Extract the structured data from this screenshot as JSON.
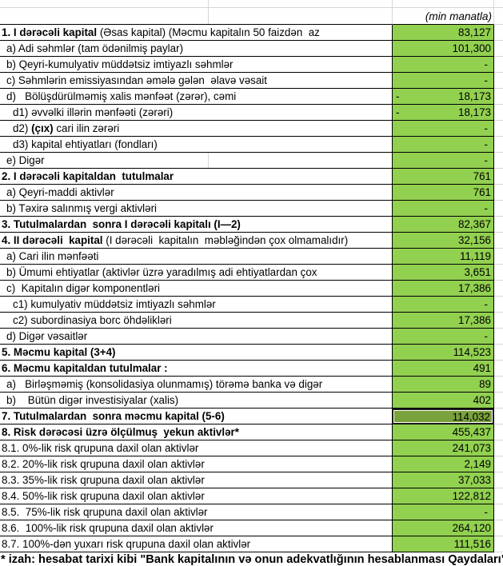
{
  "header": {
    "unit_label": "(min manatla)"
  },
  "colors": {
    "cell_green": "#92d050",
    "selected_cell_green": "#7aa23c",
    "grid_line": "#d6d6d6",
    "cell_border": "#000000"
  },
  "table": {
    "rows": [
      {
        "label_parts": [
          {
            "text": "1. I dərəcəli kapital",
            "bold": true
          },
          {
            "text": " (Əsas kapital) (Məcmu kapitalın 50 faizdən  az",
            "bold": false
          }
        ],
        "indent": 0,
        "value": "83,127"
      },
      {
        "label_parts": [
          {
            "text": "a) Adi səhmlər (tam ödənilmiş paylar)",
            "bold": false
          }
        ],
        "indent": 1,
        "value": "101,300"
      },
      {
        "label_parts": [
          {
            "text": "b) Qeyri-kumulyativ müddətsiz imtiyazlı səhmlər",
            "bold": false
          }
        ],
        "indent": 1,
        "value": "-",
        "dash": true
      },
      {
        "label_parts": [
          {
            "text": "c) Səhmlərin emissiyasından əmələ gələn  əlavə vəsait",
            "bold": false
          }
        ],
        "indent": 1,
        "value": "-",
        "dash": true
      },
      {
        "label_parts": [
          {
            "text": "d)   Bölüşdürülməmiş xalis mənfəət (zərər), cəmi",
            "bold": false
          }
        ],
        "indent": 1,
        "value": "18,173",
        "negative": true
      },
      {
        "label_parts": [
          {
            "text": "d1) əvvəlki illərin mənfəəti (zərəri)",
            "bold": false
          }
        ],
        "indent": 2,
        "value": "18,173",
        "negative": true
      },
      {
        "label_parts": [
          {
            "text": "d2) ",
            "bold": false
          },
          {
            "text": "(çıx)",
            "bold": true
          },
          {
            "text": " cari ilin zərəri",
            "bold": false
          }
        ],
        "indent": 2,
        "value": "-",
        "dash": true
      },
      {
        "label_parts": [
          {
            "text": "d3) kapital ehtiyatları (fondları)",
            "bold": false
          }
        ],
        "indent": 2,
        "value": "-",
        "dash": true
      },
      {
        "label_parts": [
          {
            "text": "e) Digər",
            "bold": false
          }
        ],
        "indent": 1,
        "value": "-",
        "dash": true,
        "desc_gridline": true
      },
      {
        "label_parts": [
          {
            "text": "2. I dərəcəli kapitaldan  tutulmalar",
            "bold": true
          }
        ],
        "indent": 0,
        "value": "761"
      },
      {
        "label_parts": [
          {
            "text": "a) Qeyri-maddi aktivlər",
            "bold": false
          }
        ],
        "indent": 1,
        "value": "761"
      },
      {
        "label_parts": [
          {
            "text": "b) Təxirə salınmış vergi aktivləri",
            "bold": false
          }
        ],
        "indent": 1,
        "value": "-",
        "dash": true
      },
      {
        "label_parts": [
          {
            "text": "3. Tutulmalardan  sonra I dərəcəli kapitalı (I—2)",
            "bold": true
          }
        ],
        "indent": 0,
        "value": "82,367"
      },
      {
        "label_parts": [
          {
            "text": "4. II dərəcəli  kapital",
            "bold": true
          },
          {
            "text": " (I dərəcəli  kapitalın  məbləğindən çox olmamalıdır)",
            "bold": false
          }
        ],
        "indent": 0,
        "value": "32,156"
      },
      {
        "label_parts": [
          {
            "text": "a) Cari ilin mənfəəti",
            "bold": false
          }
        ],
        "indent": 1,
        "value": "11,119"
      },
      {
        "label_parts": [
          {
            "text": "b) Ümumi ehtiyatlar (aktivlər üzrə yaradılmış adi ehtiyatlardan çox",
            "bold": false
          }
        ],
        "indent": 1,
        "value": "3,651"
      },
      {
        "label_parts": [
          {
            "text": "c)  Kapitalın digər komponentləri",
            "bold": false
          }
        ],
        "indent": 1,
        "value": "17,386"
      },
      {
        "label_parts": [
          {
            "text": "c1) kumulyativ müddətsiz imtiyazlı səhmlər",
            "bold": false
          }
        ],
        "indent": 2,
        "value": "-",
        "dash": true
      },
      {
        "label_parts": [
          {
            "text": "c2) subordinasiya borc öhdəlikləri",
            "bold": false
          }
        ],
        "indent": 2,
        "value": "17,386"
      },
      {
        "label_parts": [
          {
            "text": "d) Digər vəsaitlər",
            "bold": false
          }
        ],
        "indent": 1,
        "value": "-",
        "dash": true
      },
      {
        "label_parts": [
          {
            "text": "5. Məcmu kapital (3+4)",
            "bold": true
          }
        ],
        "indent": 0,
        "value": "114,523"
      },
      {
        "label_parts": [
          {
            "text": "6. Məcmu kapitaldan tutulmalar :",
            "bold": true
          }
        ],
        "indent": 0,
        "value": "491"
      },
      {
        "label_parts": [
          {
            "text": "a)   Birləşməmiş (konsolidasiya olunmamış) törəmə banka və digər",
            "bold": false
          }
        ],
        "indent": 1,
        "value": "89"
      },
      {
        "label_parts": [
          {
            "text": "b)    Bütün digər investisiyalar (xalis)",
            "bold": false
          }
        ],
        "indent": 1,
        "value": "402"
      },
      {
        "label_parts": [
          {
            "text": "7. Tutulmalardan  sonra məcmu kapital (5-6)",
            "bold": true
          }
        ],
        "indent": 0,
        "value": "114,032",
        "selected": true
      },
      {
        "label_parts": [
          {
            "text": "8. Risk dərəcəsi üzrə ölçülmuş  yekun aktivlər*",
            "bold": true
          }
        ],
        "indent": 0,
        "value": "455,437"
      },
      {
        "label_parts": [
          {
            "text": "8.1. 0%-lik risk qrupuna daxil olan aktivlər",
            "bold": false
          }
        ],
        "indent": 0,
        "value": "241,073"
      },
      {
        "label_parts": [
          {
            "text": "8.2. 20%-lik risk qrupuna daxil olan aktivlər",
            "bold": false
          }
        ],
        "indent": 0,
        "value": "2,149"
      },
      {
        "label_parts": [
          {
            "text": "8.3. 35%-lik risk qrupuna daxil olan aktivlər",
            "bold": false
          }
        ],
        "indent": 0,
        "value": "37,033"
      },
      {
        "label_parts": [
          {
            "text": "8.4. 50%-lik risk qrupuna daxil olan aktivlər",
            "bold": false
          }
        ],
        "indent": 0,
        "value": "122,812"
      },
      {
        "label_parts": [
          {
            "text": "8.5.  75%-lik risk qrupuna daxil olan aktivlər",
            "bold": false
          }
        ],
        "indent": 0,
        "value": "-",
        "dash": true
      },
      {
        "label_parts": [
          {
            "text": "8.6.  100%-lik risk qrupuna daxil olan aktivlər",
            "bold": false
          }
        ],
        "indent": 0,
        "value": "264,120"
      },
      {
        "label_parts": [
          {
            "text": "8.7. 100%-dən yuxarı risk qrupuna daxil olan aktivlər",
            "bold": false
          }
        ],
        "indent": 0,
        "value": "111,516"
      }
    ]
  },
  "footnote": {
    "text": "* izah: hesabat tarixi kibi \"Bank kapitalının və onun adekvatlığının hesablanması Qaydaları\""
  }
}
